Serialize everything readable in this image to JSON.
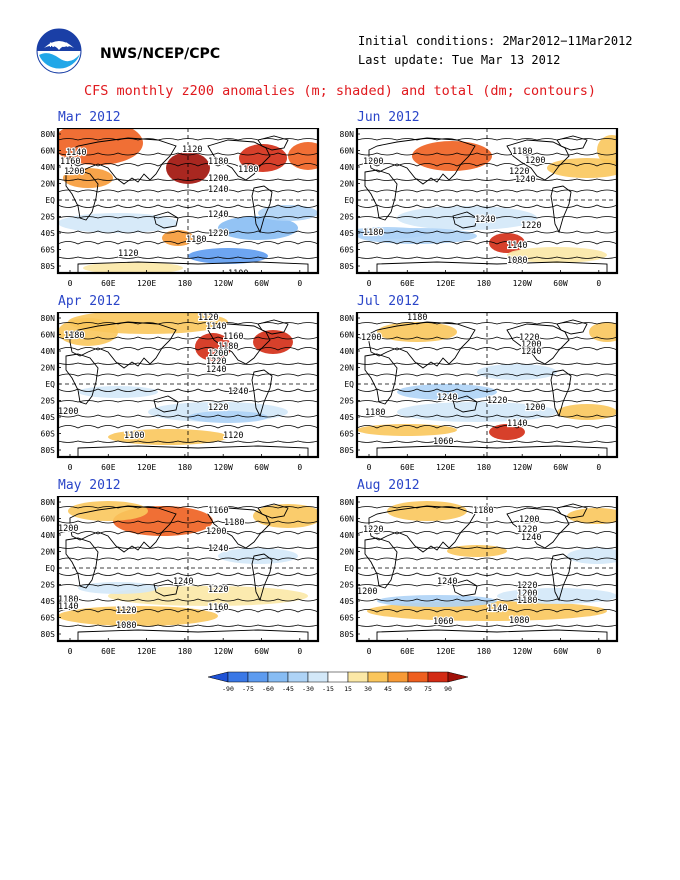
{
  "header": {
    "org": "NWS/NCEP/CPC",
    "initial_conditions": "Initial conditions: 2Mar2012−11Mar2012",
    "last_update": "Last update: Tue Mar 13 2012",
    "title": "CFS monthly z200 anomalies (m; shaded) and total (dm; contours)",
    "logo_icon": "noaa-logo"
  },
  "axes": {
    "lat_labels": [
      "80N",
      "60N",
      "40N",
      "20N",
      "EQ",
      "20S",
      "40S",
      "60S",
      "80S"
    ],
    "lon_labels": [
      "0",
      "60E",
      "120E",
      "180",
      "120W",
      "60W",
      "0"
    ]
  },
  "panels": [
    {
      "id": "mar",
      "title": "Mar 2012",
      "col": 0,
      "row": 0,
      "contour_labels": [
        {
          "t": "1120",
          "x": 124,
          "y": 24
        },
        {
          "t": "1140",
          "x": 8,
          "y": 27
        },
        {
          "t": "1160",
          "x": 2,
          "y": 36
        },
        {
          "t": "1180",
          "x": 150,
          "y": 36
        },
        {
          "t": "1180",
          "x": 180,
          "y": 44
        },
        {
          "t": "1200",
          "x": 6,
          "y": 46
        },
        {
          "t": "1200",
          "x": 150,
          "y": 53
        },
        {
          "t": "1240",
          "x": 150,
          "y": 64
        },
        {
          "t": "1240",
          "x": 150,
          "y": 89
        },
        {
          "t": "1220",
          "x": 150,
          "y": 108
        },
        {
          "t": "1180",
          "x": 128,
          "y": 114
        },
        {
          "t": "1120",
          "x": 60,
          "y": 128
        },
        {
          "t": "1100",
          "x": 170,
          "y": 148
        }
      ]
    },
    {
      "id": "jun",
      "title": "Jun 2012",
      "col": 1,
      "row": 0,
      "contour_labels": [
        {
          "t": "1180",
          "x": 155,
          "y": 26
        },
        {
          "t": "1200",
          "x": 6,
          "y": 36
        },
        {
          "t": "1200",
          "x": 168,
          "y": 35
        },
        {
          "t": "1220",
          "x": 152,
          "y": 46
        },
        {
          "t": "1240",
          "x": 158,
          "y": 54
        },
        {
          "t": "1240",
          "x": 118,
          "y": 94
        },
        {
          "t": "1220",
          "x": 164,
          "y": 100
        },
        {
          "t": "1180",
          "x": 6,
          "y": 107
        },
        {
          "t": "1140",
          "x": 150,
          "y": 120
        },
        {
          "t": "1080",
          "x": 150,
          "y": 135
        }
      ]
    },
    {
      "id": "apr",
      "title": "Apr 2012",
      "col": 0,
      "row": 1,
      "contour_labels": [
        {
          "t": "1120",
          "x": 140,
          "y": 8
        },
        {
          "t": "1140",
          "x": 148,
          "y": 17
        },
        {
          "t": "1180",
          "x": 6,
          "y": 26
        },
        {
          "t": "1160",
          "x": 165,
          "y": 27
        },
        {
          "t": "1180",
          "x": 160,
          "y": 37
        },
        {
          "t": "1200",
          "x": 150,
          "y": 44
        },
        {
          "t": "1220",
          "x": 148,
          "y": 52
        },
        {
          "t": "1240",
          "x": 148,
          "y": 60
        },
        {
          "t": "1240",
          "x": 170,
          "y": 82
        },
        {
          "t": "1220",
          "x": 150,
          "y": 98
        },
        {
          "t": "1200",
          "x": 0,
          "y": 102
        },
        {
          "t": "1100",
          "x": 66,
          "y": 126
        },
        {
          "t": "1120",
          "x": 165,
          "y": 126
        }
      ]
    },
    {
      "id": "jul",
      "title": "Jul 2012",
      "col": 1,
      "row": 1,
      "contour_labels": [
        {
          "t": "1180",
          "x": 50,
          "y": 8
        },
        {
          "t": "1200",
          "x": 4,
          "y": 28
        },
        {
          "t": "1220",
          "x": 162,
          "y": 28
        },
        {
          "t": "1200",
          "x": 164,
          "y": 35
        },
        {
          "t": "1240",
          "x": 164,
          "y": 42
        },
        {
          "t": "1240",
          "x": 80,
          "y": 88
        },
        {
          "t": "1220",
          "x": 130,
          "y": 91
        },
        {
          "t": "1200",
          "x": 168,
          "y": 98
        },
        {
          "t": "1180",
          "x": 8,
          "y": 103
        },
        {
          "t": "1140",
          "x": 150,
          "y": 114
        },
        {
          "t": "1060",
          "x": 76,
          "y": 132
        }
      ]
    },
    {
      "id": "may",
      "title": "May 2012",
      "col": 0,
      "row": 2,
      "contour_labels": [
        {
          "t": "1160",
          "x": 150,
          "y": 17
        },
        {
          "t": "1180",
          "x": 166,
          "y": 29
        },
        {
          "t": "1200",
          "x": 0,
          "y": 35
        },
        {
          "t": "1200",
          "x": 148,
          "y": 38
        },
        {
          "t": "1240",
          "x": 150,
          "y": 55
        },
        {
          "t": "1240",
          "x": 115,
          "y": 88
        },
        {
          "t": "1220",
          "x": 150,
          "y": 96
        },
        {
          "t": "1180",
          "x": 0,
          "y": 106
        },
        {
          "t": "1140",
          "x": 0,
          "y": 113
        },
        {
          "t": "1120",
          "x": 58,
          "y": 117
        },
        {
          "t": "1160",
          "x": 150,
          "y": 114
        },
        {
          "t": "1080",
          "x": 58,
          "y": 132
        }
      ]
    },
    {
      "id": "aug",
      "title": "Aug 2012",
      "col": 1,
      "row": 2,
      "contour_labels": [
        {
          "t": "1180",
          "x": 116,
          "y": 17
        },
        {
          "t": "1200",
          "x": 162,
          "y": 26
        },
        {
          "t": "1220",
          "x": 6,
          "y": 36
        },
        {
          "t": "1220",
          "x": 160,
          "y": 36
        },
        {
          "t": "1240",
          "x": 164,
          "y": 44
        },
        {
          "t": "1240",
          "x": 80,
          "y": 88
        },
        {
          "t": "1220",
          "x": 160,
          "y": 92
        },
        {
          "t": "1200",
          "x": 0,
          "y": 98
        },
        {
          "t": "1200",
          "x": 160,
          "y": 100
        },
        {
          "t": "1180",
          "x": 160,
          "y": 107
        },
        {
          "t": "1140",
          "x": 130,
          "y": 115
        },
        {
          "t": "1060",
          "x": 76,
          "y": 128
        },
        {
          "t": "1080",
          "x": 152,
          "y": 127
        }
      ]
    }
  ],
  "colorbar": {
    "levels": [
      "-90",
      "-75",
      "-60",
      "-45",
      "-30",
      "-15",
      "15",
      "30",
      "45",
      "60",
      "75",
      "90"
    ],
    "colors": [
      "#1e52d6",
      "#3a78e6",
      "#5d9bef",
      "#87bcf3",
      "#aed3f6",
      "#d3e8f8",
      "#ffffff",
      "#fbe8a6",
      "#fac65c",
      "#f79a36",
      "#ee5f1f",
      "#d32b14",
      "#a01008"
    ]
  }
}
